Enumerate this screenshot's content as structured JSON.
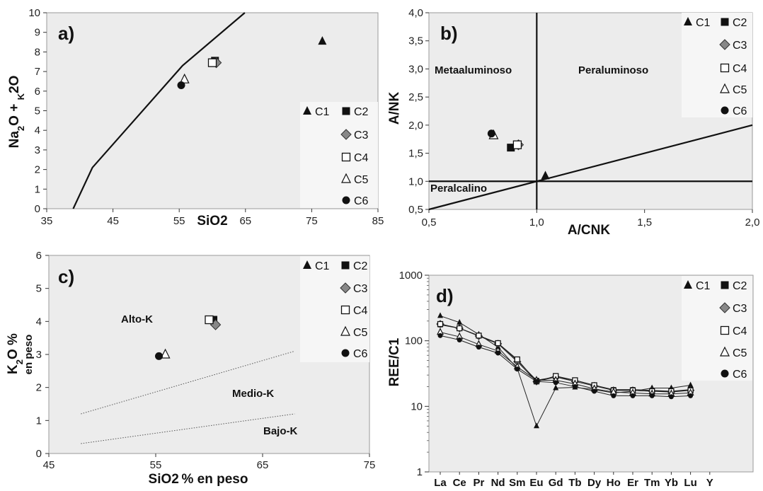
{
  "legend": [
    "C1",
    "C2",
    "C3",
    "C4",
    "C5",
    "C6"
  ],
  "chart_data": [
    {
      "id": "a",
      "type": "scatter",
      "panel_label": "a)",
      "xlim": [
        35,
        85
      ],
      "ylim": [
        0,
        10
      ],
      "xticks": [
        "35",
        "45",
        "55",
        "65",
        "75",
        "85"
      ],
      "yticks": [
        "0",
        "1",
        "2",
        "3",
        "4",
        "5",
        "6",
        "7",
        "8",
        "9",
        "10"
      ],
      "xlabel": "SiO2",
      "ylabel": "Na2O + K2O",
      "boundary_line": [
        [
          39,
          0
        ],
        [
          41.9,
          2.1
        ],
        [
          55.5,
          7.3
        ],
        [
          64.9,
          10
        ]
      ],
      "points": [
        {
          "series": "C1",
          "x": 76.6,
          "y": 8.55
        },
        {
          "series": "C2",
          "x": 60.4,
          "y": 7.55
        },
        {
          "series": "C3",
          "x": 60.6,
          "y": 7.45
        },
        {
          "series": "C4",
          "x": 60.0,
          "y": 7.45
        },
        {
          "series": "C5",
          "x": 55.8,
          "y": 6.6
        },
        {
          "series": "C6",
          "x": 55.3,
          "y": 6.3
        }
      ]
    },
    {
      "id": "b",
      "type": "scatter",
      "panel_label": "b)",
      "xlim": [
        0.5,
        2.0
      ],
      "ylim": [
        0.5,
        4.0
      ],
      "xticks": [
        "0,5",
        "1,0",
        "1,5",
        "2,0"
      ],
      "yticks": [
        "0,5",
        "1,0",
        "1,5",
        "2,0",
        "2,5",
        "3,0",
        "3,5",
        "4,0"
      ],
      "xlabel": "A/CNK",
      "ylabel": "A/NK",
      "regions": [
        "Metaaluminoso",
        "Peraluminoso",
        "Peralcalino"
      ],
      "lines": [
        [
          [
            1.0,
            0.5
          ],
          [
            1.0,
            4.0
          ]
        ],
        [
          [
            0.5,
            1.0
          ],
          [
            2.0,
            1.0
          ]
        ],
        [
          [
            0.5,
            0.5
          ],
          [
            2.0,
            2.0
          ]
        ]
      ],
      "points": [
        {
          "series": "C1",
          "x": 1.04,
          "y": 1.1
        },
        {
          "series": "C2",
          "x": 0.88,
          "y": 1.6
        },
        {
          "series": "C3",
          "x": 0.915,
          "y": 1.65
        },
        {
          "series": "C4",
          "x": 0.91,
          "y": 1.65
        },
        {
          "series": "C5",
          "x": 0.8,
          "y": 1.82
        },
        {
          "series": "C6",
          "x": 0.79,
          "y": 1.85
        }
      ]
    },
    {
      "id": "c",
      "type": "scatter",
      "panel_label": "c)",
      "xlim": [
        45,
        75
      ],
      "ylim": [
        0,
        6
      ],
      "xticks": [
        "45",
        "55",
        "65",
        "75"
      ],
      "yticks": [
        "0",
        "1",
        "2",
        "3",
        "4",
        "5",
        "6"
      ],
      "xlabel": "SiO2 % en peso",
      "ylabel": "K2O %",
      "ylabel_sub": "en peso",
      "regions": [
        "Alto-K",
        "Medio-K",
        "Bajo-K"
      ],
      "dotted_lines": [
        [
          [
            48,
            1.2
          ],
          [
            68,
            3.1
          ]
        ],
        [
          [
            48,
            0.3
          ],
          [
            68,
            1.2
          ]
        ]
      ],
      "points": [
        {
          "series": "C1",
          "x": null,
          "y": null
        },
        {
          "series": "C2",
          "x": 60.4,
          "y": 4.05
        },
        {
          "series": "C3",
          "x": 60.6,
          "y": 3.9
        },
        {
          "series": "C4",
          "x": 60.0,
          "y": 4.05
        },
        {
          "series": "C5",
          "x": 55.9,
          "y": 3.0
        },
        {
          "series": "C6",
          "x": 55.3,
          "y": 2.95
        }
      ]
    },
    {
      "id": "d",
      "type": "line",
      "panel_label": "d)",
      "yscale": "log",
      "ylim": [
        1,
        1000
      ],
      "yticks": [
        "1",
        "10",
        "100",
        "1000"
      ],
      "categories": [
        "La",
        "Ce",
        "Pr",
        "Nd",
        "Sm",
        "Eu",
        "Gd",
        "Tb",
        "Dy",
        "Ho",
        "Er",
        "Tm",
        "Yb",
        "Lu",
        "Y"
      ],
      "xlabel": "",
      "ylabel": "REE/C1",
      "series": [
        {
          "name": "C1",
          "values": [
            240,
            190,
            125,
            80,
            38,
            5,
            19,
            19.5,
            18,
            16,
            17,
            19,
            19,
            21,
            null
          ]
        },
        {
          "name": "C2",
          "values": [
            175,
            155,
            120,
            92,
            50,
            25,
            28,
            25,
            21,
            18,
            18,
            17.5,
            17,
            18,
            null
          ]
        },
        {
          "name": "C3",
          "values": [
            180,
            155,
            118,
            90,
            48,
            24,
            28,
            24,
            20.5,
            17.5,
            17.5,
            17,
            16.5,
            17.5,
            null
          ]
        },
        {
          "name": "C4",
          "values": [
            180,
            155,
            120,
            92,
            52,
            24,
            29,
            25,
            21,
            17.5,
            17.5,
            17,
            17,
            17.5,
            null
          ]
        },
        {
          "name": "C5",
          "values": [
            135,
            115,
            88,
            70,
            40,
            25,
            25,
            22,
            18.5,
            16.5,
            16,
            15.5,
            15.5,
            16,
            null
          ]
        },
        {
          "name": "C6",
          "values": [
            120,
            103,
            80,
            65,
            37,
            24,
            23,
            20,
            17,
            14.5,
            14.5,
            14.5,
            14,
            14.5,
            null
          ]
        }
      ]
    }
  ]
}
